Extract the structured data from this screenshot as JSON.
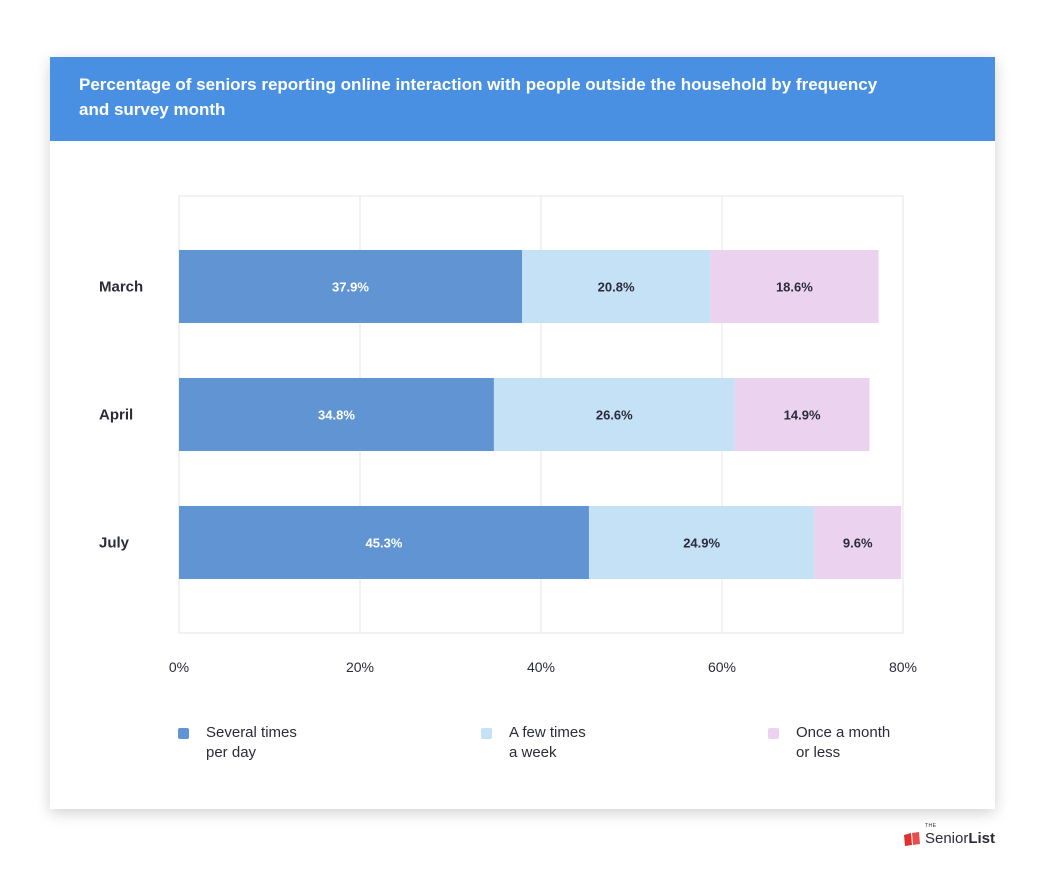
{
  "title": "Percentage of seniors reporting online interaction with people outside the household by frequency and survey month",
  "chart_data": {
    "type": "bar",
    "orientation": "horizontal",
    "stacked": true,
    "title": "Percentage of seniors reporting online interaction with people outside the household by frequency and survey month",
    "xlabel": "",
    "ylabel": "",
    "categories": [
      "March",
      "April",
      "July"
    ],
    "series": [
      {
        "name": "Several times per day",
        "values": [
          37.9,
          34.8,
          45.3
        ],
        "labels": [
          "37.9%",
          "34.8%",
          "45.3%"
        ],
        "color": "#6094d2",
        "label_color": "#ffffff"
      },
      {
        "name": "A few times a week",
        "values": [
          20.8,
          26.6,
          24.9
        ],
        "labels": [
          "20.8%",
          "26.6%",
          "24.9%"
        ],
        "color": "#c4e1f6",
        "label_color": "#2b2b3a"
      },
      {
        "name": "Once a month or less",
        "values": [
          18.6,
          14.9,
          9.6
        ],
        "labels": [
          "18.6%",
          "14.9%",
          "9.6%"
        ],
        "color": "#ebd3ef",
        "label_color": "#2b2b3a"
      }
    ],
    "xlim": [
      0,
      80
    ],
    "xticks": [
      0,
      20,
      40,
      60,
      80
    ],
    "xtick_labels": [
      "0%",
      "20%",
      "40%",
      "60%",
      "80%"
    ],
    "grid": true,
    "legend_position": "bottom"
  },
  "legend": [
    {
      "line1": "Several times",
      "line2": "per day",
      "color": "#6094d2"
    },
    {
      "line1": "A few times",
      "line2": "a week",
      "color": "#c4e1f6"
    },
    {
      "line1": "Once a month",
      "line2": "or less",
      "color": "#ebd3ef"
    }
  ],
  "brand": {
    "small": "THE",
    "regular": "Senior",
    "bold": "List",
    "icon": "book-icon",
    "color": "#e0312f"
  }
}
